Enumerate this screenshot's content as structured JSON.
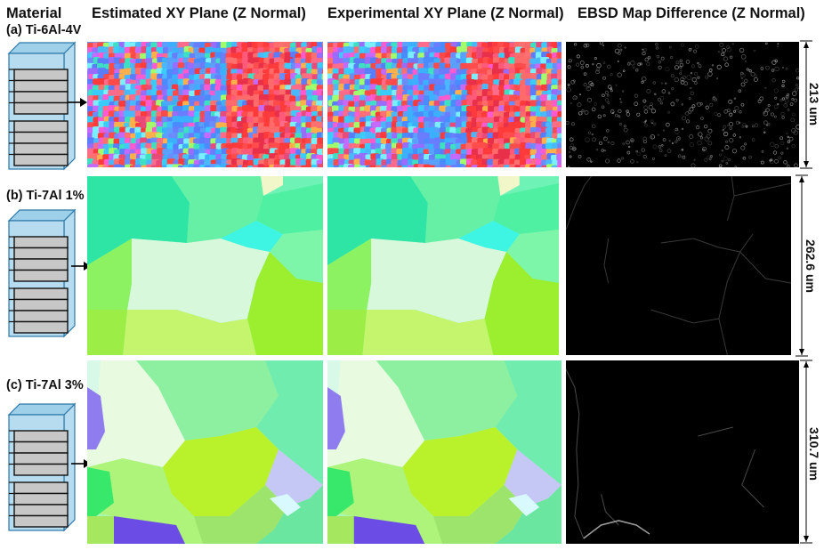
{
  "headers": {
    "material": "Material",
    "estimated": "Estimated XY Plane (Z Normal)",
    "experimental": "Experimental XY Plane (Z Normal)",
    "difference": "EBSD Map Difference (Z Normal)"
  },
  "rows": [
    {
      "label": "(a) Ti-6Al-4V",
      "scale": "213 um"
    },
    {
      "label": "(b) Ti-7Al 1%",
      "scale": "262.6  um"
    },
    {
      "label": "(c) Ti-7Al 3%",
      "scale": "310.7  um"
    }
  ],
  "colors": {
    "stack_light": "#b7dcef",
    "stack_top": "#9fd0ea",
    "stack_edge": "#2d78a8",
    "layer_gray": "#c7c7c7",
    "diff_background": "#000000"
  }
}
